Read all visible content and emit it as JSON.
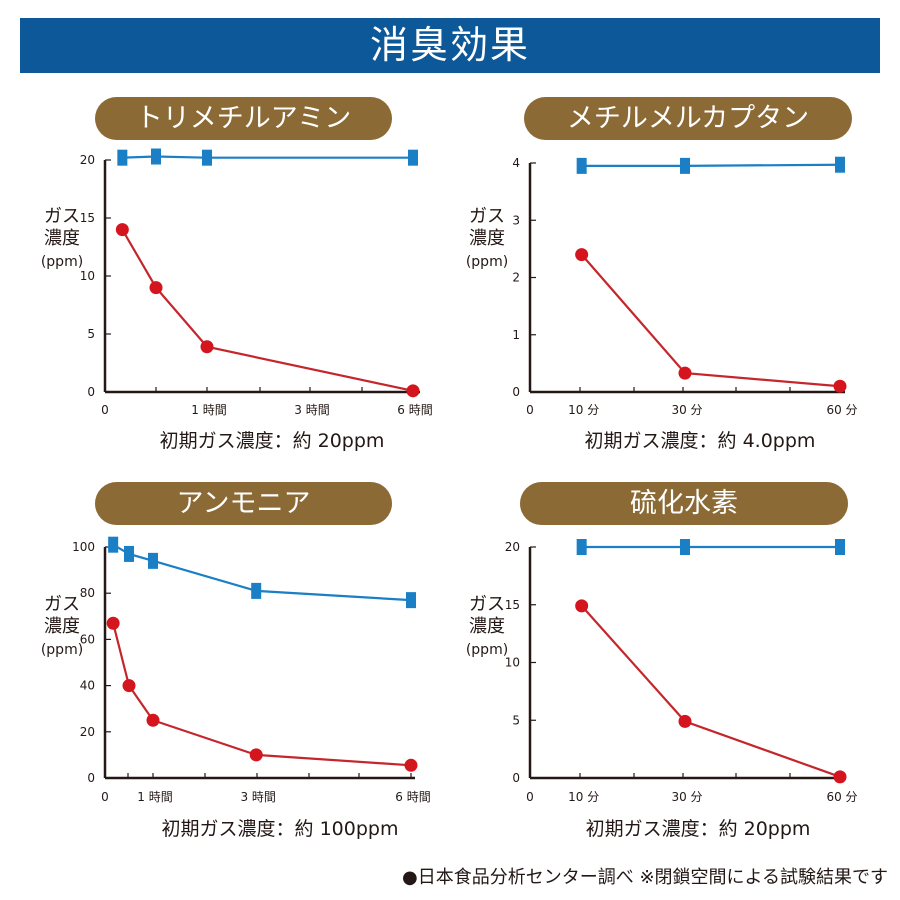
{
  "title": "消臭効果",
  "footer": "●日本食品分析センター調べ ※閉鎖空間による試験結果です",
  "colors": {
    "banner": "#0d5898",
    "pill": "#8b6a35",
    "blue_series": "#1a7fc4",
    "red_series": "#d4151d"
  },
  "chart_data": [
    {
      "type": "line",
      "title": "トリメチルアミン",
      "caption": "初期ガス濃度：約 20ppm",
      "ylabel_lines": [
        "ガス",
        "濃度",
        "(ppm)"
      ],
      "x_unit": "hours",
      "x_ticks": [
        {
          "label": "0",
          "value": 0
        },
        {
          "label": "1 時間",
          "value": 1
        },
        {
          "label": "3 時間",
          "value": 3
        },
        {
          "label": "6 時間",
          "value": 6
        }
      ],
      "y_ticks": [
        "0",
        "5",
        "10",
        "15",
        "20"
      ],
      "ylim": [
        0,
        20
      ],
      "x": [
        0.17,
        0.5,
        1,
        6
      ],
      "series": [
        {
          "marker": "square",
          "color": "#1a7fc4",
          "values": [
            20.2,
            20.3,
            20.2,
            20.2
          ]
        },
        {
          "marker": "circle",
          "color": "#d4151d",
          "values": [
            14,
            9,
            3.9,
            0.1
          ]
        }
      ]
    },
    {
      "type": "line",
      "title": "メチルメルカプタン",
      "caption": "初期ガス濃度：約 4.0ppm",
      "ylabel_lines": [
        "ガス",
        "濃度",
        "(ppm)"
      ],
      "x_unit": "minutes",
      "x_ticks": [
        {
          "label": "0",
          "value": 0
        },
        {
          "label": "10 分",
          "value": 10
        },
        {
          "label": "30 分",
          "value": 30
        },
        {
          "label": "60 分",
          "value": 60
        }
      ],
      "y_ticks": [
        "0",
        "1",
        "2",
        "3",
        "4"
      ],
      "ylim": [
        0,
        4
      ],
      "x": [
        10,
        30,
        60
      ],
      "series": [
        {
          "marker": "square",
          "color": "#1a7fc4",
          "values": [
            3.95,
            3.95,
            3.97
          ]
        },
        {
          "marker": "circle",
          "color": "#d4151d",
          "values": [
            2.4,
            0.33,
            0.1
          ]
        }
      ]
    },
    {
      "type": "line",
      "title": "アンモニア",
      "caption": "初期ガス濃度：約 100ppm",
      "ylabel_lines": [
        "ガス",
        "濃度",
        "(ppm)"
      ],
      "x_unit": "hours",
      "x_ticks": [
        {
          "label": "0",
          "value": 0
        },
        {
          "label": "1 時間",
          "value": 1
        },
        {
          "label": "3 時間",
          "value": 3
        },
        {
          "label": "6 時間",
          "value": 6
        }
      ],
      "y_ticks": [
        "0",
        "20",
        "40",
        "60",
        "80",
        "100"
      ],
      "ylim": [
        0,
        100
      ],
      "x": [
        0.17,
        0.5,
        1,
        3,
        6
      ],
      "series": [
        {
          "marker": "square",
          "color": "#1a7fc4",
          "values": [
            101,
            97,
            94,
            81,
            77
          ]
        },
        {
          "marker": "circle",
          "color": "#d4151d",
          "values": [
            67,
            40,
            25,
            10,
            5.5
          ]
        }
      ]
    },
    {
      "type": "line",
      "title": "硫化水素",
      "caption": "初期ガス濃度：約 20ppm",
      "ylabel_lines": [
        "ガス",
        "濃度",
        "(ppm)"
      ],
      "x_unit": "minutes",
      "x_ticks": [
        {
          "label": "0",
          "value": 0
        },
        {
          "label": "10 分",
          "value": 10
        },
        {
          "label": "30 分",
          "value": 30
        },
        {
          "label": "60 分",
          "value": 60
        }
      ],
      "y_ticks": [
        "0",
        "5",
        "10",
        "15",
        "20"
      ],
      "ylim": [
        0,
        20
      ],
      "x": [
        10,
        30,
        60
      ],
      "series": [
        {
          "marker": "square",
          "color": "#1a7fc4",
          "values": [
            20,
            20,
            20
          ]
        },
        {
          "marker": "circle",
          "color": "#d4151d",
          "values": [
            14.9,
            4.9,
            0.1
          ]
        }
      ]
    }
  ]
}
